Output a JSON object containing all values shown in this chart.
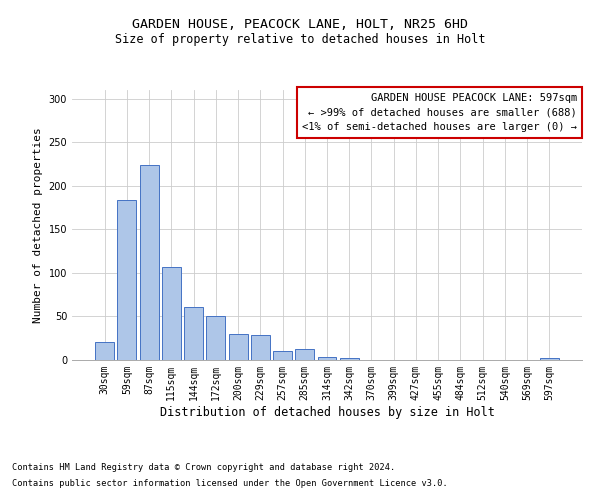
{
  "title": "GARDEN HOUSE, PEACOCK LANE, HOLT, NR25 6HD",
  "subtitle": "Size of property relative to detached houses in Holt",
  "xlabel": "Distribution of detached houses by size in Holt",
  "ylabel": "Number of detached properties",
  "footnote1": "Contains HM Land Registry data © Crown copyright and database right 2024.",
  "footnote2": "Contains public sector information licensed under the Open Government Licence v3.0.",
  "bar_labels": [
    "30sqm",
    "59sqm",
    "87sqm",
    "115sqm",
    "144sqm",
    "172sqm",
    "200sqm",
    "229sqm",
    "257sqm",
    "285sqm",
    "314sqm",
    "342sqm",
    "370sqm",
    "399sqm",
    "427sqm",
    "455sqm",
    "484sqm",
    "512sqm",
    "540sqm",
    "569sqm",
    "597sqm"
  ],
  "bar_values": [
    21,
    184,
    224,
    107,
    61,
    51,
    30,
    29,
    10,
    13,
    4,
    2,
    0,
    0,
    0,
    0,
    0,
    0,
    0,
    0,
    2
  ],
  "bar_color": "#aec6e8",
  "bar_edgecolor": "#4472c4",
  "ylim": [
    0,
    310
  ],
  "yticks": [
    0,
    50,
    100,
    150,
    200,
    250,
    300
  ],
  "legend_title": "GARDEN HOUSE PEACOCK LANE: 597sqm",
  "legend_line1": "← >99% of detached houses are smaller (688)",
  "legend_line2": "<1% of semi-detached houses are larger (0) →",
  "legend_box_color": "#ffffff",
  "legend_box_edgecolor": "#cc0000",
  "background_color": "#ffffff",
  "title_fontsize": 9.5,
  "subtitle_fontsize": 8.5,
  "xlabel_fontsize": 8.5,
  "ylabel_fontsize": 8,
  "tick_fontsize": 7,
  "legend_fontsize": 7.5,
  "footnote_fontsize": 6.2
}
